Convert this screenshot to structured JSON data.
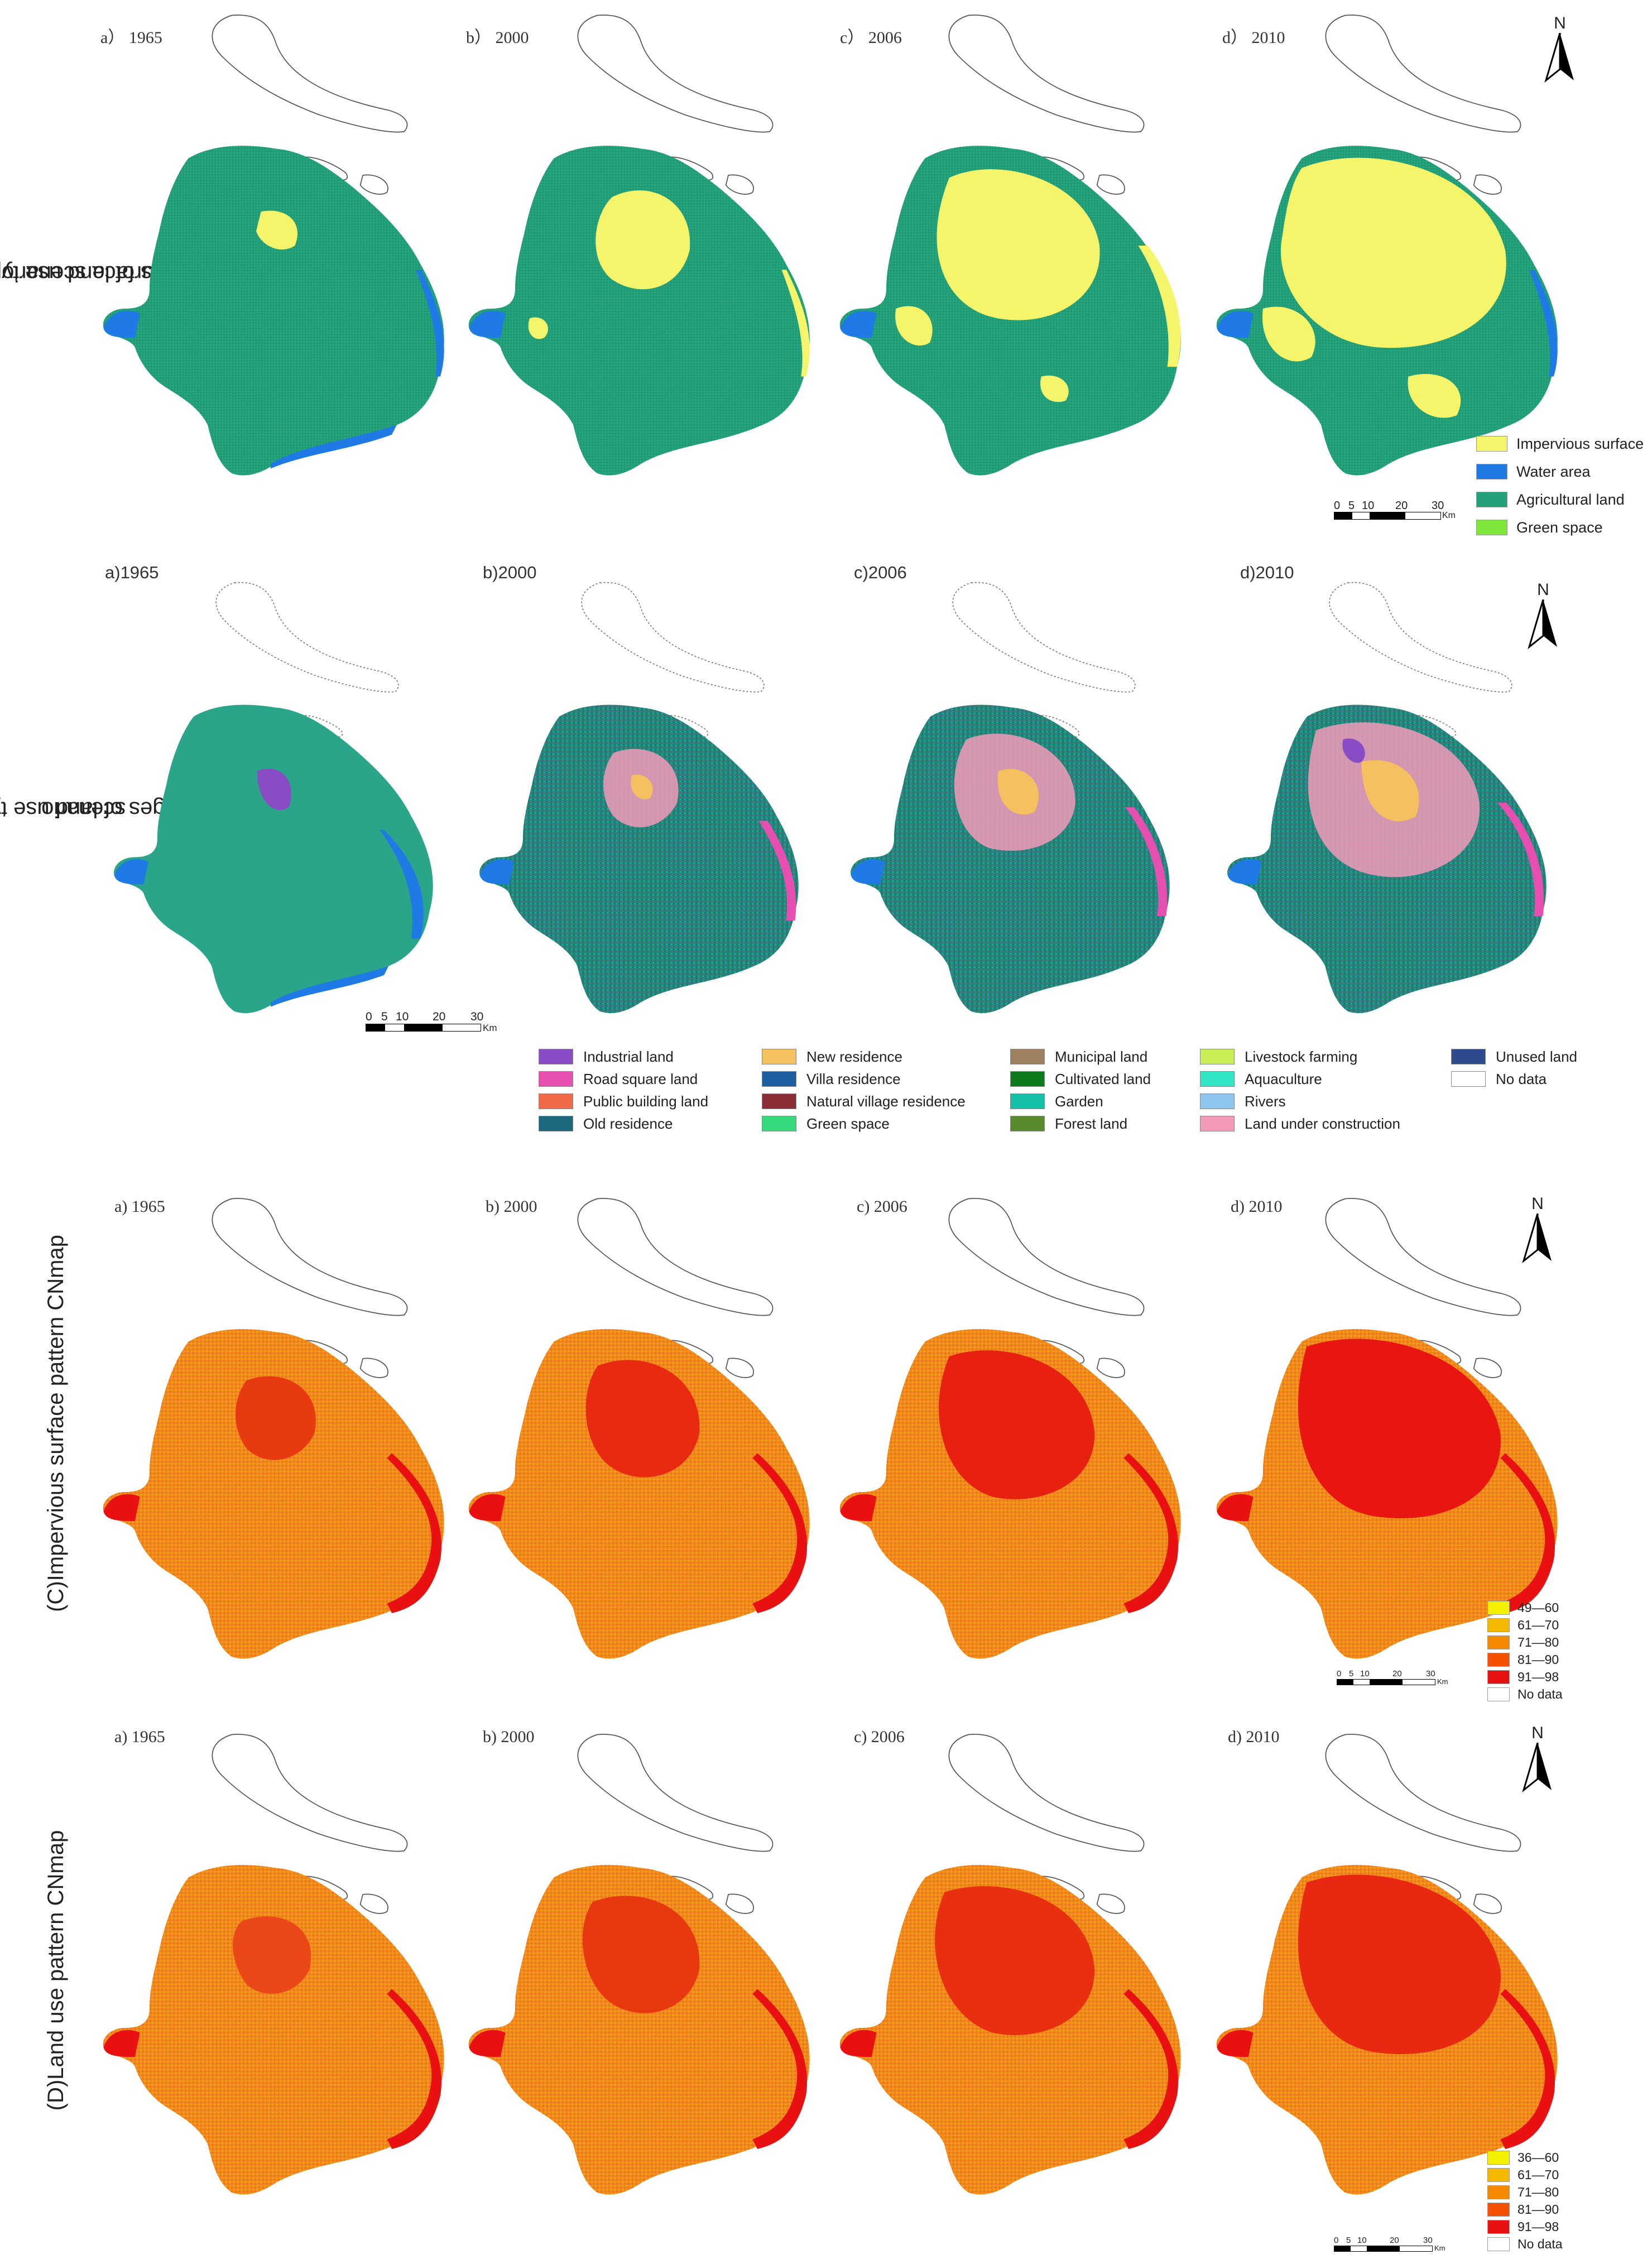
{
  "rows": [
    {
      "title_line1": "(A)Changes of land use types upon impervious",
      "title_line2": "surface scenario",
      "panels": [
        "a） 1965",
        "b） 2000",
        "c） 2006",
        "d） 2010"
      ],
      "legend": [
        {
          "label": "Impervious surface",
          "color": "#f4f56a"
        },
        {
          "label": "Water area",
          "color": "#1f7ae6"
        },
        {
          "label": "Agricultural land",
          "color": "#22a07a"
        },
        {
          "label": "Green space",
          "color": "#7fe63a"
        }
      ]
    },
    {
      "title_line1": "(B)Changes of land use types upon land use",
      "title_line2": "scenario",
      "panels": [
        "a)1965",
        "b)2000",
        "c)2006",
        "d)2010"
      ],
      "legend": [
        {
          "label": "Industrial land",
          "color": "#8a4cc4"
        },
        {
          "label": "Road square land",
          "color": "#e64fb0"
        },
        {
          "label": "Public building land",
          "color": "#f06a48"
        },
        {
          "label": "Old residence",
          "color": "#1d6a80"
        },
        {
          "label": "New residence",
          "color": "#f5c060"
        },
        {
          "label": "Villa residence",
          "color": "#1d5ea0"
        },
        {
          "label": "Natural village residence",
          "color": "#8a2d35"
        },
        {
          "label": "Green space",
          "color": "#33d97a"
        },
        {
          "label": "Municipal land",
          "color": "#9c8060"
        },
        {
          "label": "Cultivated land",
          "color": "#0f7a1d"
        },
        {
          "label": "Garden",
          "color": "#14c0a8"
        },
        {
          "label": "Forest land",
          "color": "#5a8a2e"
        },
        {
          "label": "Livestock farming",
          "color": "#c8ef55"
        },
        {
          "label": "Aquaculture",
          "color": "#30e6c4"
        },
        {
          "label": "Rivers",
          "color": "#8ec6f0"
        },
        {
          "label": "Land under construction",
          "color": "#f29ab8"
        },
        {
          "label": "Unused land",
          "color": "#2e4a8e"
        },
        {
          "label": "No data",
          "color": "#ffffff"
        }
      ]
    },
    {
      "title_line1": "(C)Impervious surface pattern CNmap",
      "panels": [
        "a) 1965",
        "b) 2000",
        "c) 2006",
        "d) 2010"
      ],
      "legend": [
        {
          "label": "49—60",
          "color": "#f5f000"
        },
        {
          "label": "61—70",
          "color": "#f5b800"
        },
        {
          "label": "71—80",
          "color": "#f58a00"
        },
        {
          "label": "81—90",
          "color": "#f55000"
        },
        {
          "label": "91—98",
          "color": "#e81010"
        },
        {
          "label": "No data",
          "color": "#ffffff"
        }
      ]
    },
    {
      "title_line1": "(D)Land use pattern CNmap",
      "panels": [
        "a) 1965",
        "b) 2000",
        "c) 2006",
        "d) 2010"
      ],
      "legend": [
        {
          "label": "36—60",
          "color": "#f5f000"
        },
        {
          "label": "61—70",
          "color": "#f5b800"
        },
        {
          "label": "71—80",
          "color": "#f58a00"
        },
        {
          "label": "81—90",
          "color": "#f55000"
        },
        {
          "label": "91—98",
          "color": "#e81010"
        },
        {
          "label": "No data",
          "color": "#ffffff"
        }
      ]
    }
  ],
  "north_label": "N",
  "scale": {
    "ticks": [
      "0",
      "5",
      "10",
      "20",
      "30"
    ],
    "unit": "Km"
  }
}
